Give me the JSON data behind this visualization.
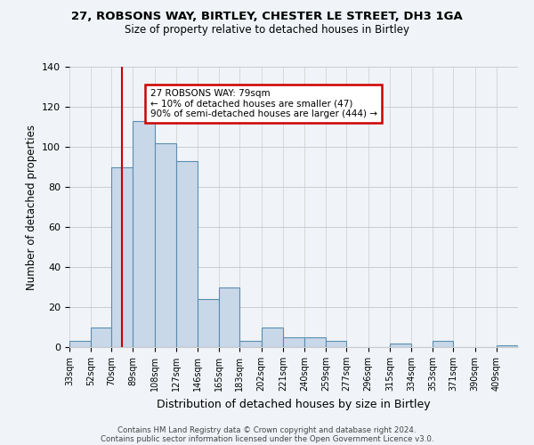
{
  "title1": "27, ROBSONS WAY, BIRTLEY, CHESTER LE STREET, DH3 1GA",
  "title2": "Size of property relative to detached houses in Birtley",
  "xlabel": "Distribution of detached houses by size in Birtley",
  "ylabel": "Number of detached properties",
  "bin_labels": [
    "33sqm",
    "52sqm",
    "70sqm",
    "89sqm",
    "108sqm",
    "127sqm",
    "146sqm",
    "165sqm",
    "183sqm",
    "202sqm",
    "221sqm",
    "240sqm",
    "259sqm",
    "277sqm",
    "296sqm",
    "315sqm",
    "334sqm",
    "353sqm",
    "371sqm",
    "390sqm",
    "409sqm"
  ],
  "bin_edges": [
    33,
    52,
    70,
    89,
    108,
    127,
    146,
    165,
    183,
    202,
    221,
    240,
    259,
    277,
    296,
    315,
    334,
    353,
    371,
    390,
    409
  ],
  "counts": [
    3,
    10,
    90,
    113,
    102,
    93,
    24,
    30,
    3,
    10,
    5,
    5,
    3,
    0,
    0,
    2,
    0,
    3,
    0,
    0,
    1
  ],
  "bar_color": "#c8d8e8",
  "bar_edge_color": "#5b8db0",
  "grid_color": "#cccccc",
  "vline_x": 79,
  "vline_color": "#cc0000",
  "annotation_text": "27 ROBSONS WAY: 79sqm\n← 10% of detached houses are smaller (47)\n90% of semi-detached houses are larger (444) →",
  "annotation_box_color": "#ffffff",
  "annotation_box_edge": "#cc0000",
  "footer1": "Contains HM Land Registry data © Crown copyright and database right 2024.",
  "footer2": "Contains public sector information licensed under the Open Government Licence v3.0.",
  "ylim": [
    0,
    140
  ],
  "yticks": [
    0,
    20,
    40,
    60,
    80,
    100,
    120,
    140
  ],
  "bg_color": "#f0f4f8"
}
